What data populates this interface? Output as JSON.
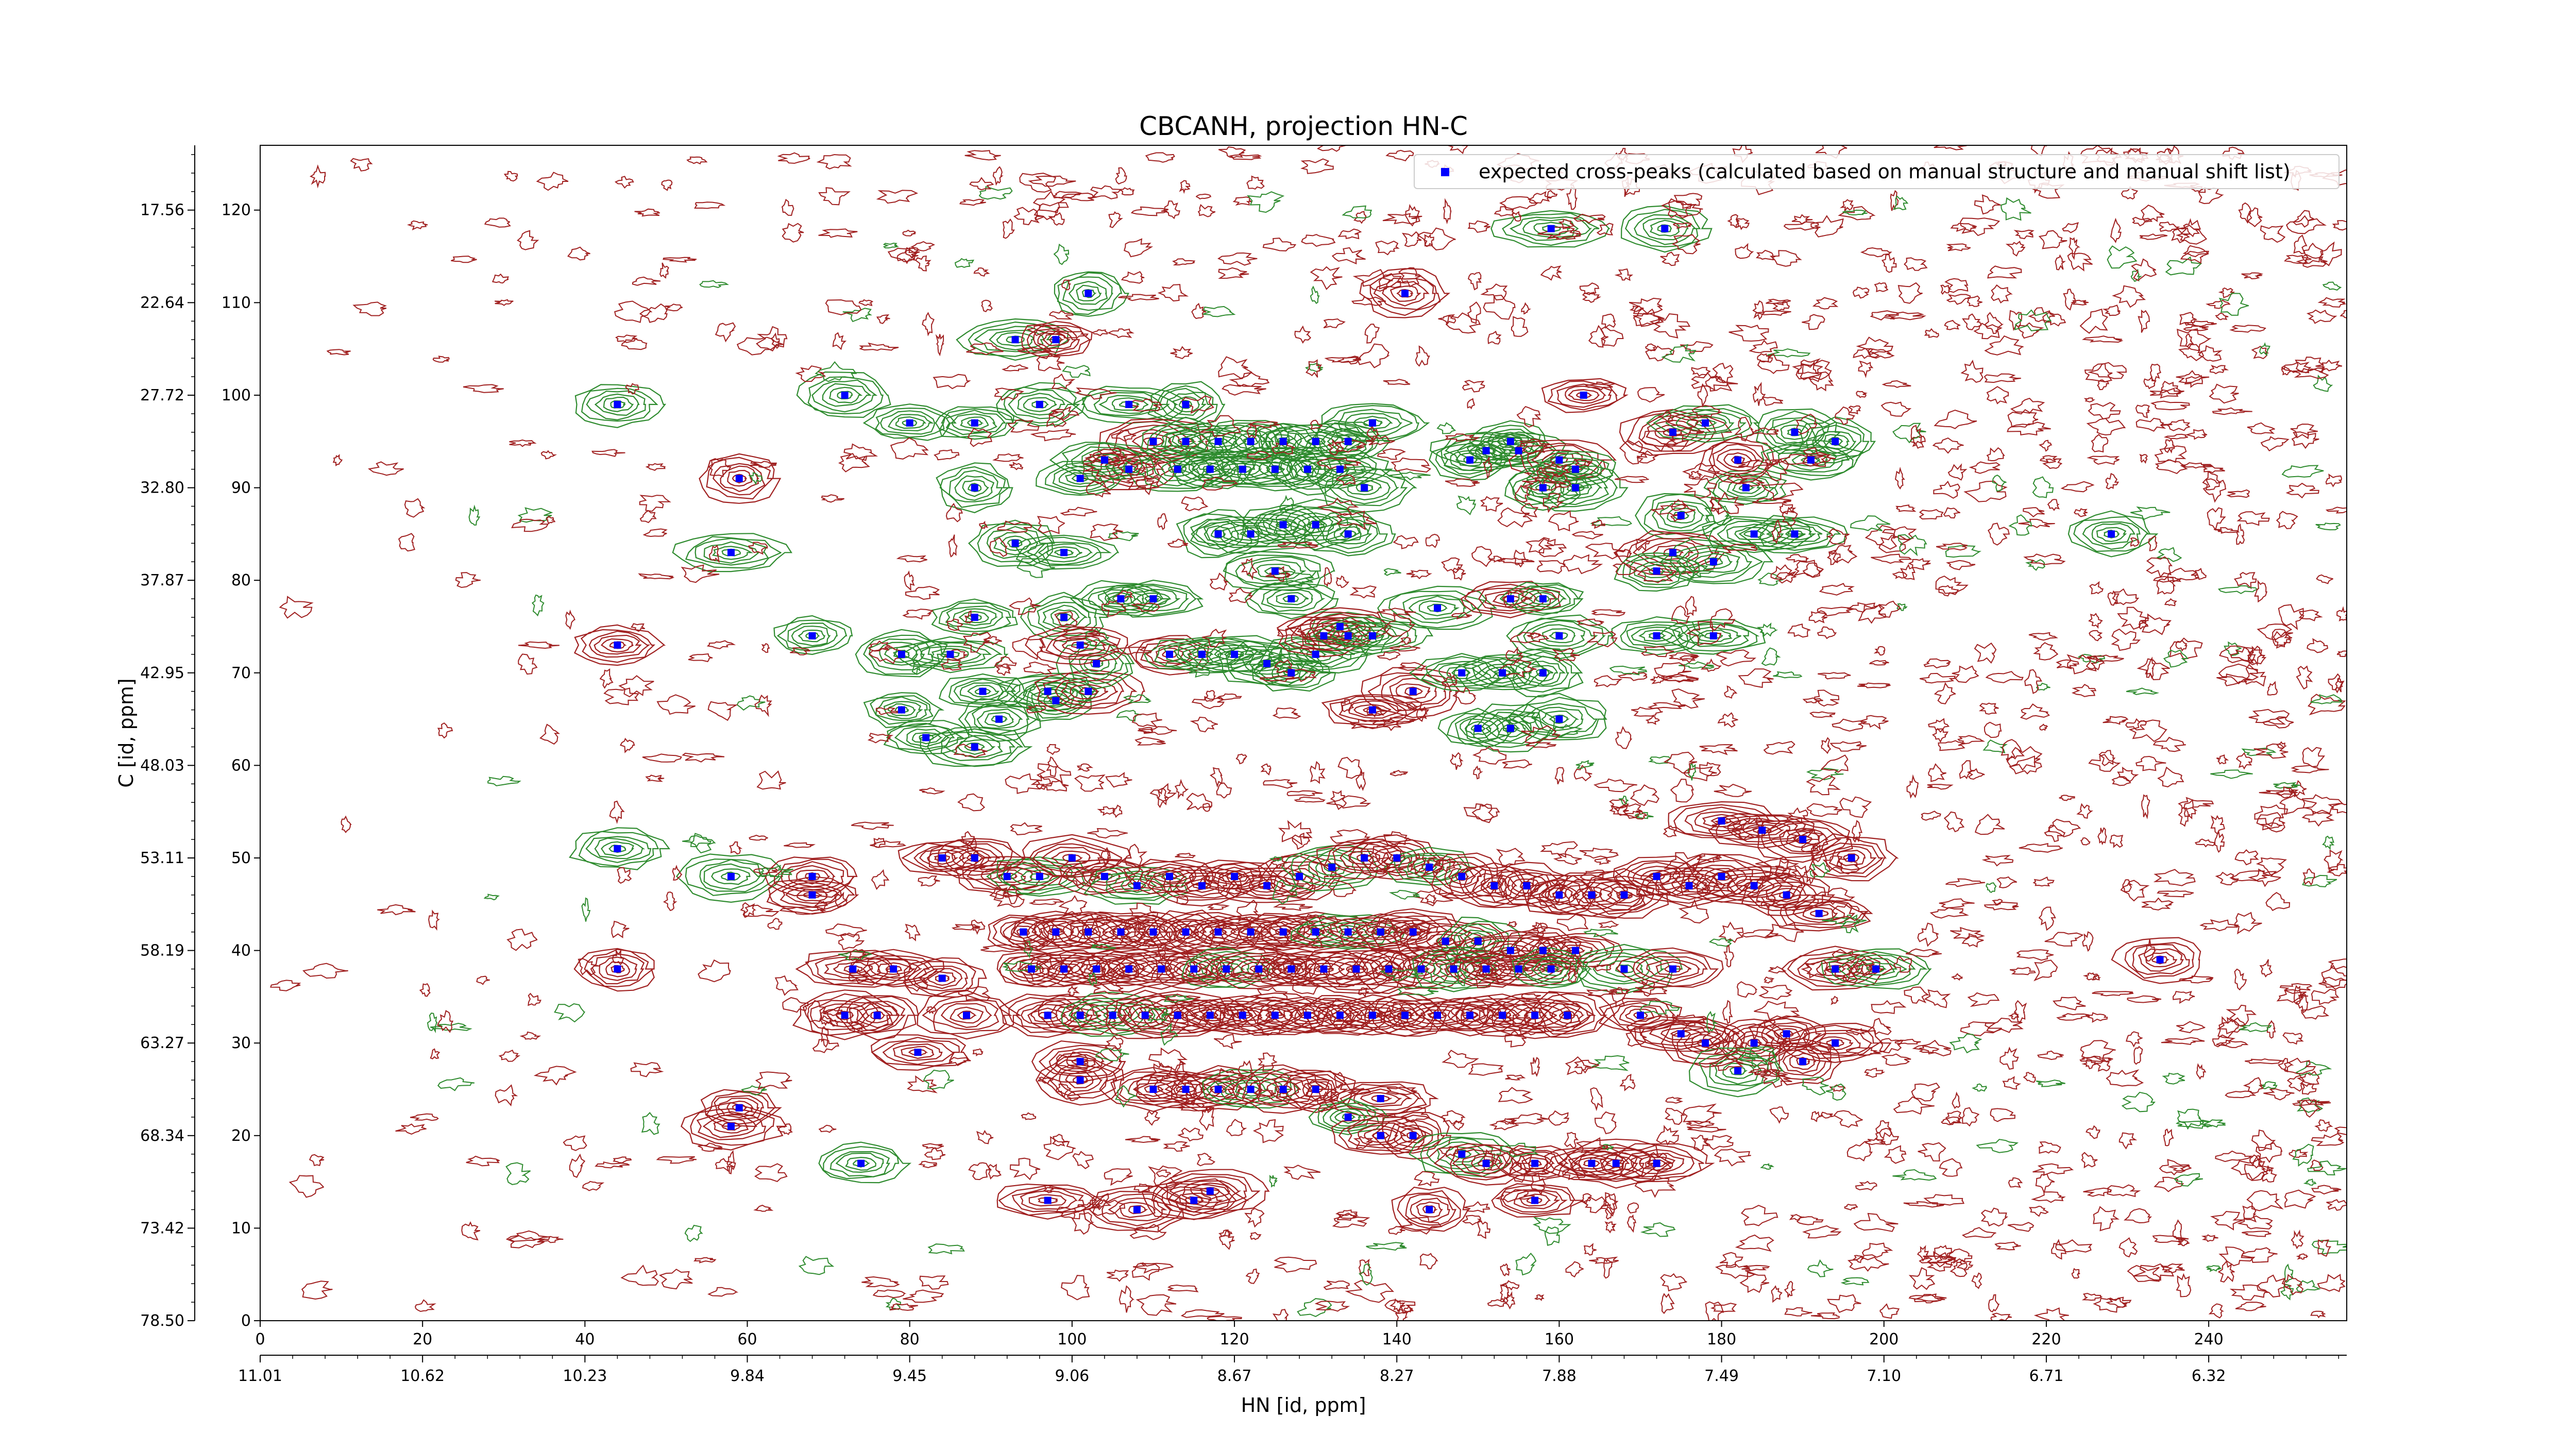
{
  "chart_data": {
    "type": "contour",
    "title": "CBCANH, projection HN-C",
    "xlabel": "HN [id, ppm]",
    "ylabel": "C [id, ppm]",
    "x_index_range": [
      0,
      257
    ],
    "y_index_range": [
      0,
      127
    ],
    "x_index_ticks": [
      "0",
      "20",
      "40",
      "60",
      "80",
      "100",
      "120",
      "140",
      "160",
      "180",
      "200",
      "220",
      "240"
    ],
    "y_index_ticks": [
      "0",
      "10",
      "20",
      "30",
      "40",
      "50",
      "60",
      "70",
      "80",
      "90",
      "100",
      "110",
      "120"
    ],
    "x_ppm_ticks": [
      "11.01",
      "10.62",
      "10.23",
      "9.84",
      "9.45",
      "9.06",
      "8.67",
      "8.27",
      "7.88",
      "7.49",
      "7.10",
      "6.71",
      "6.32"
    ],
    "y_ppm_ticks": [
      "78.50",
      "73.42",
      "68.34",
      "63.27",
      "58.19",
      "53.11",
      "48.03",
      "42.95",
      "37.87",
      "32.80",
      "27.72",
      "22.64",
      "17.56"
    ],
    "legend": {
      "position": "upper-right",
      "entries": [
        {
          "label": "expected cross-peaks (calculated based on manual structure and manual shift list)",
          "color": "#0000ff",
          "marker": "x"
        }
      ]
    },
    "colors": {
      "positive_contours": "#2e8b2e",
      "negative_contours": "#a02020",
      "markers": "#0000ff"
    },
    "expected_peaks": [
      [
        44,
        99
      ],
      [
        72,
        100
      ],
      [
        80,
        97
      ],
      [
        59,
        91
      ],
      [
        58,
        83
      ],
      [
        44,
        73
      ],
      [
        68,
        74
      ],
      [
        44,
        51
      ],
      [
        58,
        48
      ],
      [
        68,
        48
      ],
      [
        68,
        46
      ],
      [
        44,
        38
      ],
      [
        102,
        111
      ],
      [
        93,
        106
      ],
      [
        98,
        106
      ],
      [
        141,
        111
      ],
      [
        159,
        118
      ],
      [
        173,
        118
      ],
      [
        96,
        99
      ],
      [
        88,
        97
      ],
      [
        107,
        99
      ],
      [
        114,
        99
      ],
      [
        88,
        90
      ],
      [
        93,
        84
      ],
      [
        99,
        83
      ],
      [
        99,
        76
      ],
      [
        88,
        76
      ],
      [
        85,
        72
      ],
      [
        79,
        72
      ],
      [
        79,
        66
      ],
      [
        89,
        68
      ],
      [
        91,
        65
      ],
      [
        88,
        62
      ],
      [
        82,
        63
      ],
      [
        97,
        68
      ],
      [
        98,
        67
      ],
      [
        102,
        68
      ],
      [
        103,
        71
      ],
      [
        101,
        73
      ],
      [
        106,
        78
      ],
      [
        110,
        78
      ],
      [
        112,
        72
      ],
      [
        116,
        72
      ],
      [
        120,
        72
      ],
      [
        124,
        71
      ],
      [
        127,
        70
      ],
      [
        130,
        72
      ],
      [
        134,
        74
      ],
      [
        137,
        66
      ],
      [
        142,
        68
      ],
      [
        145,
        77
      ],
      [
        148,
        70
      ],
      [
        153,
        70
      ],
      [
        154,
        78
      ],
      [
        158,
        78
      ],
      [
        160,
        74
      ],
      [
        158,
        70
      ],
      [
        160,
        65
      ],
      [
        150,
        64
      ],
      [
        154,
        64
      ],
      [
        149,
        93
      ],
      [
        151,
        94
      ],
      [
        154,
        95
      ],
      [
        155,
        94
      ],
      [
        160,
        93
      ],
      [
        162,
        92
      ],
      [
        162,
        90
      ],
      [
        158,
        90
      ],
      [
        163,
        100
      ],
      [
        174,
        96
      ],
      [
        178,
        97
      ],
      [
        175,
        87
      ],
      [
        174,
        83
      ],
      [
        172,
        81
      ],
      [
        179,
        82
      ],
      [
        179,
        74
      ],
      [
        172,
        74
      ],
      [
        184,
        85
      ],
      [
        183,
        90
      ],
      [
        182,
        93
      ],
      [
        189,
        96
      ],
      [
        194,
        95
      ],
      [
        191,
        93
      ],
      [
        189,
        85
      ],
      [
        228,
        85
      ],
      [
        107,
        92
      ],
      [
        113,
        92
      ],
      [
        117,
        92
      ],
      [
        121,
        92
      ],
      [
        125,
        92
      ],
      [
        129,
        92
      ],
      [
        133,
        92
      ],
      [
        136,
        90
      ],
      [
        110,
        95
      ],
      [
        114,
        95
      ],
      [
        118,
        95
      ],
      [
        122,
        95
      ],
      [
        126,
        95
      ],
      [
        130,
        95
      ],
      [
        134,
        95
      ],
      [
        137,
        97
      ],
      [
        101,
        91
      ],
      [
        104,
        93
      ],
      [
        118,
        85
      ],
      [
        122,
        85
      ],
      [
        126,
        86
      ],
      [
        130,
        86
      ],
      [
        134,
        85
      ],
      [
        125,
        81
      ],
      [
        127,
        78
      ],
      [
        131,
        74
      ],
      [
        133,
        75
      ],
      [
        137,
        74
      ],
      [
        84,
        50
      ],
      [
        88,
        50
      ],
      [
        92,
        48
      ],
      [
        96,
        48
      ],
      [
        100,
        50
      ],
      [
        104,
        48
      ],
      [
        108,
        47
      ],
      [
        112,
        48
      ],
      [
        116,
        47
      ],
      [
        120,
        48
      ],
      [
        124,
        47
      ],
      [
        128,
        48
      ],
      [
        132,
        49
      ],
      [
        136,
        50
      ],
      [
        140,
        50
      ],
      [
        144,
        49
      ],
      [
        148,
        48
      ],
      [
        152,
        47
      ],
      [
        156,
        47
      ],
      [
        160,
        46
      ],
      [
        164,
        46
      ],
      [
        168,
        46
      ],
      [
        172,
        48
      ],
      [
        176,
        47
      ],
      [
        180,
        48
      ],
      [
        184,
        47
      ],
      [
        188,
        46
      ],
      [
        192,
        44
      ],
      [
        196,
        50
      ],
      [
        180,
        54
      ],
      [
        185,
        53
      ],
      [
        190,
        52
      ],
      [
        94,
        42
      ],
      [
        98,
        42
      ],
      [
        102,
        42
      ],
      [
        106,
        42
      ],
      [
        110,
        42
      ],
      [
        114,
        42
      ],
      [
        118,
        42
      ],
      [
        122,
        42
      ],
      [
        126,
        42
      ],
      [
        130,
        42
      ],
      [
        134,
        42
      ],
      [
        138,
        42
      ],
      [
        142,
        42
      ],
      [
        146,
        41
      ],
      [
        150,
        41
      ],
      [
        154,
        40
      ],
      [
        158,
        40
      ],
      [
        162,
        40
      ],
      [
        95,
        38
      ],
      [
        99,
        38
      ],
      [
        103,
        38
      ],
      [
        107,
        38
      ],
      [
        111,
        38
      ],
      [
        115,
        38
      ],
      [
        119,
        38
      ],
      [
        123,
        38
      ],
      [
        127,
        38
      ],
      [
        131,
        38
      ],
      [
        135,
        38
      ],
      [
        139,
        38
      ],
      [
        143,
        38
      ],
      [
        147,
        38
      ],
      [
        151,
        38
      ],
      [
        155,
        38
      ],
      [
        159,
        38
      ],
      [
        73,
        38
      ],
      [
        78,
        38
      ],
      [
        84,
        37
      ],
      [
        87,
        33
      ],
      [
        76,
        33
      ],
      [
        72,
        33
      ],
      [
        97,
        33
      ],
      [
        101,
        33
      ],
      [
        105,
        33
      ],
      [
        109,
        33
      ],
      [
        113,
        33
      ],
      [
        117,
        33
      ],
      [
        121,
        33
      ],
      [
        125,
        33
      ],
      [
        129,
        33
      ],
      [
        133,
        33
      ],
      [
        137,
        33
      ],
      [
        141,
        33
      ],
      [
        145,
        33
      ],
      [
        149,
        33
      ],
      [
        153,
        33
      ],
      [
        157,
        33
      ],
      [
        161,
        33
      ],
      [
        170,
        33
      ],
      [
        175,
        31
      ],
      [
        178,
        30
      ],
      [
        184,
        30
      ],
      [
        188,
        31
      ],
      [
        194,
        30
      ],
      [
        190,
        28
      ],
      [
        182,
        27
      ],
      [
        168,
        38
      ],
      [
        174,
        38
      ],
      [
        194,
        38
      ],
      [
        199,
        38
      ],
      [
        234,
        39
      ],
      [
        101,
        28
      ],
      [
        101,
        26
      ],
      [
        110,
        25
      ],
      [
        114,
        25
      ],
      [
        118,
        25
      ],
      [
        122,
        25
      ],
      [
        126,
        25
      ],
      [
        130,
        25
      ],
      [
        138,
        24
      ],
      [
        134,
        22
      ],
      [
        138,
        20
      ],
      [
        142,
        20
      ],
      [
        148,
        18
      ],
      [
        151,
        17
      ],
      [
        157,
        17
      ],
      [
        157,
        13
      ],
      [
        167,
        17
      ],
      [
        172,
        17
      ],
      [
        164,
        17
      ],
      [
        74,
        17
      ],
      [
        97,
        13
      ],
      [
        108,
        12
      ],
      [
        115,
        13
      ],
      [
        117,
        14
      ],
      [
        144,
        12
      ],
      [
        59,
        23
      ],
      [
        58,
        21
      ],
      [
        81,
        29
      ]
    ]
  }
}
